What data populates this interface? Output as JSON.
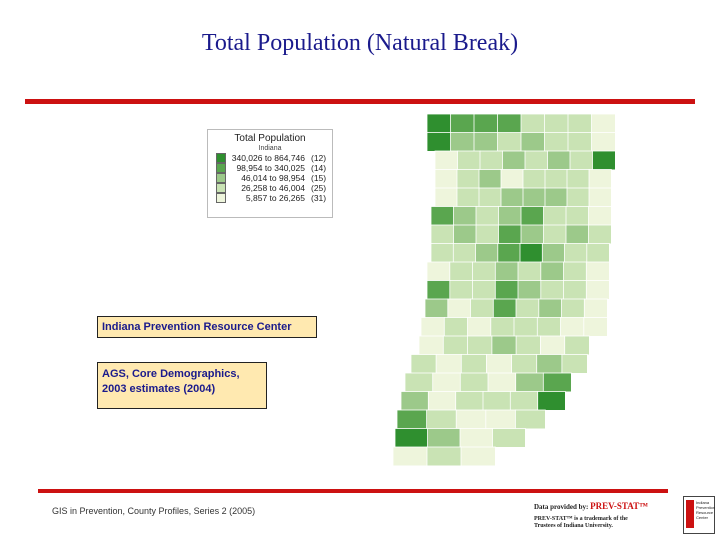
{
  "title": "Total Population (Natural Break)",
  "legend": {
    "title": "Total Population",
    "subtitle": "Indiana",
    "classes": [
      {
        "range": "340,026 to 864,746",
        "count": "(12)",
        "color": "#2f8f2f"
      },
      {
        "range": "98,954 to 340,025",
        "count": "(14)",
        "color": "#5aa64f"
      },
      {
        "range": "46,014 to 98,954",
        "count": "(15)",
        "color": "#9cc98a"
      },
      {
        "range": "26,258 to 46,004",
        "count": "(25)",
        "color": "#c9e3b4"
      },
      {
        "range": "5,857 to 26,265",
        "count": "(31)",
        "color": "#eef5dc"
      }
    ]
  },
  "box1": "Indiana Prevention Resource Center",
  "box2_line1": "AGS, Core Demographics,",
  "box2_line2": "2003 estimates (2004)",
  "footer": "GIS in Prevention, County Profiles, Series 2 (2005)",
  "credit": {
    "prefix": "Data provided by:",
    "brand": "PREV-STAT™",
    "trademark": "PREV-STAT™ is a trademark of the Trustees of Indiana University."
  },
  "logo_text": [
    "Indiana",
    "Prevention",
    "Resource",
    "Center"
  ]
}
